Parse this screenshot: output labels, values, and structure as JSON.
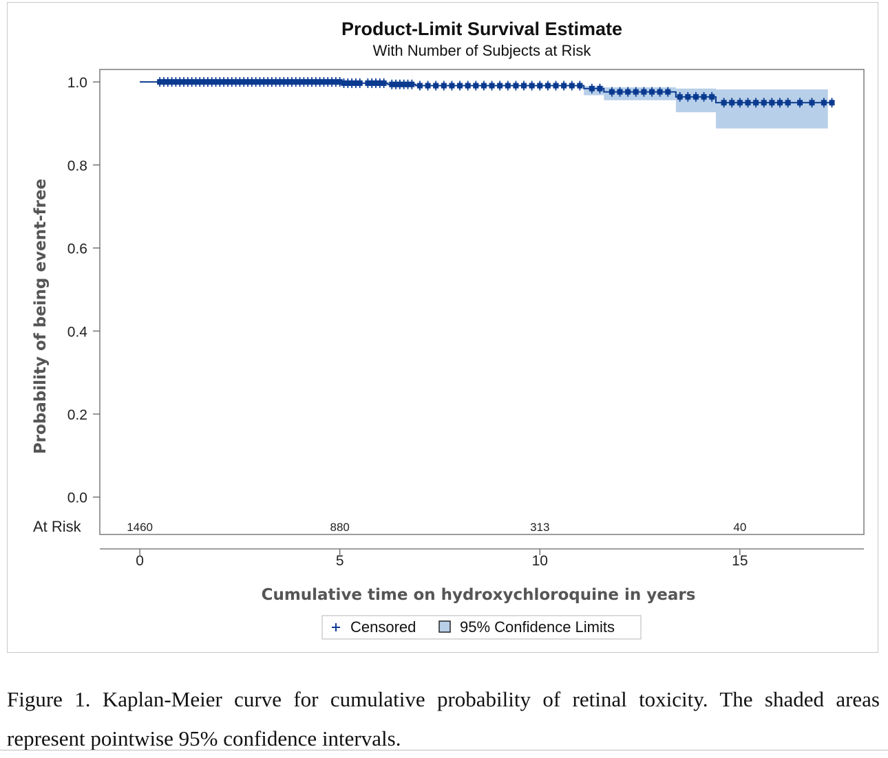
{
  "chart_data": {
    "type": "line",
    "title": "Product-Limit Survival Estimate",
    "subtitle": "With Number of Subjects at Risk",
    "xlabel": "Cumulative time on hydroxychloroquine in years",
    "ylabel": "Probability of being event-free",
    "xlim": [
      -1,
      18.1
    ],
    "ylim": [
      -0.09,
      1.03
    ],
    "x_ticks": [
      0,
      5,
      10,
      15
    ],
    "y_ticks": [
      0.0,
      0.2,
      0.4,
      0.6,
      0.8,
      1.0
    ],
    "x_tick_labels": [
      "0",
      "5",
      "10",
      "15"
    ],
    "y_tick_labels": [
      "0.0",
      "0.2",
      "0.4",
      "0.6",
      "0.8",
      "1.0"
    ],
    "grid": false,
    "at_risk": {
      "label": "At Risk",
      "times": [
        0,
        5,
        10,
        15
      ],
      "counts": [
        "1460",
        "880",
        "313",
        "40"
      ]
    },
    "survival_curve": {
      "name": "Survival estimate",
      "color": "#0b3a8f",
      "steps": [
        {
          "x": 0,
          "y": 1.0
        },
        {
          "x": 5.1,
          "y": 0.997
        },
        {
          "x": 6.2,
          "y": 0.994
        },
        {
          "x": 6.9,
          "y": 0.991
        },
        {
          "x": 11.1,
          "y": 0.984
        },
        {
          "x": 11.6,
          "y": 0.976
        },
        {
          "x": 13.4,
          "y": 0.964
        },
        {
          "x": 14.4,
          "y": 0.95
        },
        {
          "x": 17.3,
          "y": 0.95
        }
      ]
    },
    "confidence_band": {
      "name": "95% Confidence Limits",
      "color": "#b8cfe9",
      "segments": [
        {
          "x0": 11.1,
          "x1": 11.6,
          "lower": 0.968,
          "upper": 0.99
        },
        {
          "x0": 11.6,
          "x1": 13.4,
          "lower": 0.956,
          "upper": 0.987
        },
        {
          "x0": 13.4,
          "x1": 14.4,
          "lower": 0.927,
          "upper": 0.984
        },
        {
          "x0": 14.4,
          "x1": 17.2,
          "lower": 0.888,
          "upper": 0.982
        }
      ]
    },
    "censored_times": [
      0.5,
      0.6,
      0.7,
      0.8,
      0.9,
      1.0,
      1.1,
      1.2,
      1.3,
      1.4,
      1.5,
      1.6,
      1.7,
      1.8,
      1.9,
      2.0,
      2.1,
      2.2,
      2.3,
      2.4,
      2.5,
      2.6,
      2.7,
      2.8,
      2.9,
      3.0,
      3.1,
      3.2,
      3.3,
      3.4,
      3.5,
      3.6,
      3.7,
      3.8,
      3.9,
      4.0,
      4.1,
      4.2,
      4.3,
      4.4,
      4.5,
      4.6,
      4.7,
      4.8,
      4.9,
      5.0,
      5.1,
      5.2,
      5.3,
      5.4,
      5.5,
      5.7,
      5.8,
      5.9,
      6.0,
      6.1,
      6.3,
      6.4,
      6.5,
      6.6,
      6.7,
      6.8,
      7.0,
      7.2,
      7.4,
      7.6,
      7.8,
      8.0,
      8.2,
      8.4,
      8.6,
      8.8,
      9.0,
      9.2,
      9.4,
      9.6,
      9.8,
      10.0,
      10.2,
      10.4,
      10.6,
      10.8,
      11.0,
      11.3,
      11.5,
      11.8,
      12.0,
      12.2,
      12.4,
      12.6,
      12.8,
      13.0,
      13.2,
      13.5,
      13.7,
      13.9,
      14.1,
      14.3,
      14.6,
      14.8,
      15.0,
      15.2,
      15.4,
      15.6,
      15.8,
      16.0,
      16.2,
      16.5,
      16.8,
      17.1,
      17.3
    ],
    "legend": {
      "position": "bottom-center",
      "items": [
        {
          "label": "Censored",
          "symbol": "plus",
          "color": "#0b3a8f"
        },
        {
          "label": "95% Confidence Limits",
          "symbol": "square",
          "color": "#b8cfe9"
        }
      ]
    }
  },
  "caption": "Figure 1. Kaplan-Meier curve for cumulative probability of retinal toxicity. The shaded areas represent pointwise 95% confidence intervals."
}
